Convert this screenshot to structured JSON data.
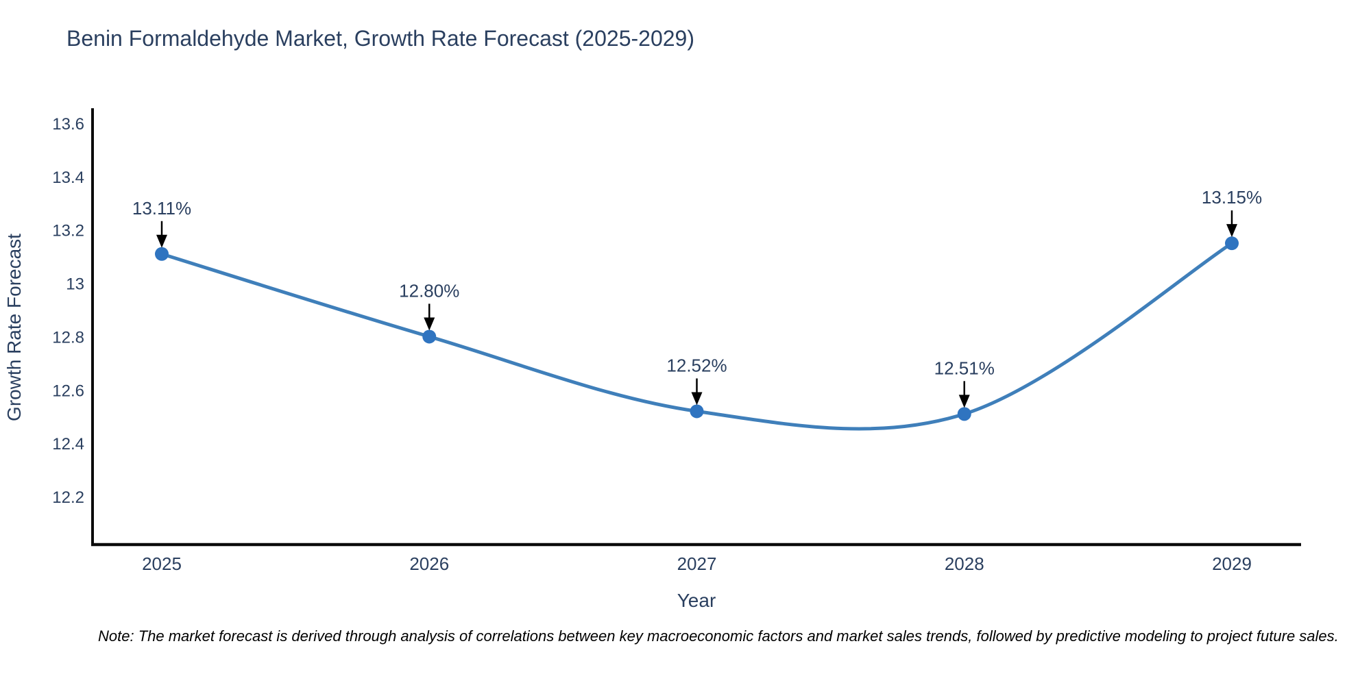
{
  "chart_data": {
    "type": "line",
    "title": "Benin Formaldehyde Market, Growth Rate Forecast (2025-2029)",
    "xlabel": "Year",
    "ylabel": "Growth Rate Forecast",
    "categories": [
      "2025",
      "2026",
      "2027",
      "2028",
      "2029"
    ],
    "series": [
      {
        "name": "Growth Rate Forecast",
        "values": [
          13.11,
          12.8,
          12.52,
          12.51,
          13.15
        ]
      }
    ],
    "point_labels": [
      "13.11%",
      "12.80%",
      "12.52%",
      "12.51%",
      "13.15%"
    ],
    "ytick_labels": [
      "12.2",
      "12.4",
      "12.6",
      "12.8",
      "13",
      "13.2",
      "13.4",
      "13.6"
    ],
    "ytick_values": [
      12.2,
      12.4,
      12.6,
      12.8,
      13.0,
      13.2,
      13.4,
      13.6
    ],
    "ylim": [
      12.02,
      13.65
    ],
    "xlim_categories": [
      "2025",
      "2029"
    ],
    "grid": false,
    "legend_position": "none",
    "line_shape": "spline",
    "marker": "circle",
    "annotations_have_arrows": true,
    "note": "Note: The market forecast is derived through analysis of correlations between key macroeconomic factors and market sales trends, followed by predictive modeling to project future sales.",
    "colors": {
      "line": "#3f7fba",
      "marker": "#2f74c0",
      "axis": "#0b0b0b",
      "tick_text": "#2a3f5f",
      "annotation_text": "#2a3f5f",
      "arrow": "#000000",
      "title_text": "#2a3f5f",
      "note_text": "#000000",
      "background": "#ffffff"
    }
  }
}
